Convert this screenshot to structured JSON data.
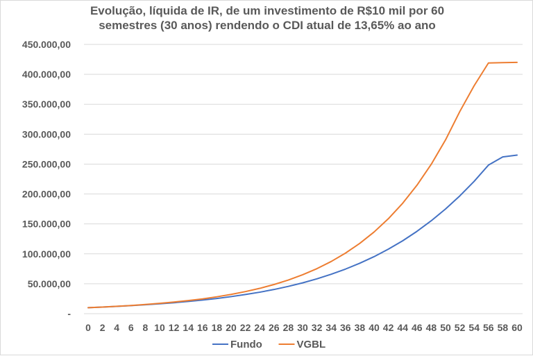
{
  "chart_data": {
    "type": "line",
    "title_lines": [
      "Evolução, líquida de IR, de um investimento de R$10 mil por 60",
      "semestres (30 anos) rendendo o CDI atual de 13,65% ao ano"
    ],
    "xlabel": "",
    "ylabel": "",
    "x_tick_labels": [
      "0",
      "2",
      "4",
      "6",
      "8",
      "10",
      "12",
      "14",
      "16",
      "18",
      "20",
      "22",
      "24",
      "26",
      "28",
      "30",
      "32",
      "34",
      "36",
      "38",
      "40",
      "42",
      "44",
      "46",
      "48",
      "50",
      "52",
      "54",
      "56",
      "58",
      "60"
    ],
    "y_tick_labels": [
      "-",
      "50.000,00",
      "100.000,00",
      "150.000,00",
      "200.000,00",
      "250.000,00",
      "300.000,00",
      "350.000,00",
      "400.000,00",
      "450.000,00"
    ],
    "ylim": [
      0,
      450000
    ],
    "xlim": [
      0,
      60
    ],
    "grid": "horizontal",
    "legend_position": "bottom",
    "x": [
      0,
      2,
      4,
      6,
      8,
      10,
      12,
      14,
      16,
      18,
      20,
      22,
      24,
      26,
      28,
      30,
      32,
      34,
      36,
      38,
      40,
      42,
      44,
      46,
      48,
      50,
      52,
      54,
      56,
      58,
      60
    ],
    "series": [
      {
        "name": "Fundo",
        "color": "#4472c4",
        "values": [
          10000,
          11000,
          12200,
          13500,
          14900,
          16500,
          18300,
          20400,
          22700,
          25400,
          28500,
          32000,
          35900,
          40400,
          45600,
          51500,
          58200,
          65900,
          74500,
          84300,
          95300,
          107800,
          121800,
          137600,
          155300,
          175000,
          196900,
          221200,
          248300,
          262000,
          265000
        ]
      },
      {
        "name": "VGBL",
        "color": "#ed7d31",
        "values": [
          10000,
          11000,
          12300,
          13700,
          15300,
          17200,
          19400,
          21900,
          24700,
          28200,
          32200,
          36900,
          42300,
          48700,
          56200,
          65000,
          75200,
          87200,
          101200,
          117500,
          136500,
          158700,
          184500,
          214700,
          249700,
          290500,
          338000,
          381000,
          419000,
          419500,
          420000
        ]
      }
    ]
  }
}
